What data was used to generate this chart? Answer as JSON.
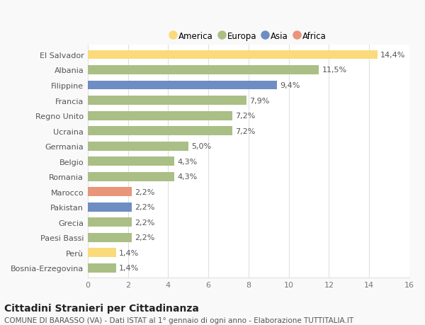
{
  "categories": [
    "El Salvador",
    "Albania",
    "Filippine",
    "Francia",
    "Regno Unito",
    "Ucraina",
    "Germania",
    "Belgio",
    "Romania",
    "Marocco",
    "Pakistan",
    "Grecia",
    "Paesi Bassi",
    "Perù",
    "Bosnia-Erzegovina"
  ],
  "values": [
    14.4,
    11.5,
    9.4,
    7.9,
    7.2,
    7.2,
    5.0,
    4.3,
    4.3,
    2.2,
    2.2,
    2.2,
    2.2,
    1.4,
    1.4
  ],
  "labels": [
    "14,4%",
    "11,5%",
    "9,4%",
    "7,9%",
    "7,2%",
    "7,2%",
    "5,0%",
    "4,3%",
    "4,3%",
    "2,2%",
    "2,2%",
    "2,2%",
    "2,2%",
    "1,4%",
    "1,4%"
  ],
  "colors": [
    "#FADA7A",
    "#AABF85",
    "#6E8DC2",
    "#AABF85",
    "#AABF85",
    "#AABF85",
    "#AABF85",
    "#AABF85",
    "#AABF85",
    "#E8957A",
    "#6E8DC2",
    "#AABF85",
    "#AABF85",
    "#FADA7A",
    "#AABF85"
  ],
  "legend": [
    {
      "label": "America",
      "color": "#FADA7A"
    },
    {
      "label": "Europa",
      "color": "#AABF85"
    },
    {
      "label": "Asia",
      "color": "#6E8DC2"
    },
    {
      "label": "Africa",
      "color": "#E8957A"
    }
  ],
  "xlim": [
    0,
    16
  ],
  "xticks": [
    0,
    2,
    4,
    6,
    8,
    10,
    12,
    14,
    16
  ],
  "title": "Cittadini Stranieri per Cittadinanza",
  "subtitle": "COMUNE DI BARASSO (VA) - Dati ISTAT al 1° gennaio di ogni anno - Elaborazione TUTTITALIA.IT",
  "bg_outer": "#f9f9f9",
  "bg_plot": "#ffffff",
  "grid_color": "#e0e0e0",
  "title_fontsize": 10,
  "subtitle_fontsize": 7.5,
  "label_fontsize": 8,
  "tick_fontsize": 8,
  "value_fontsize": 8,
  "bar_height": 0.6
}
